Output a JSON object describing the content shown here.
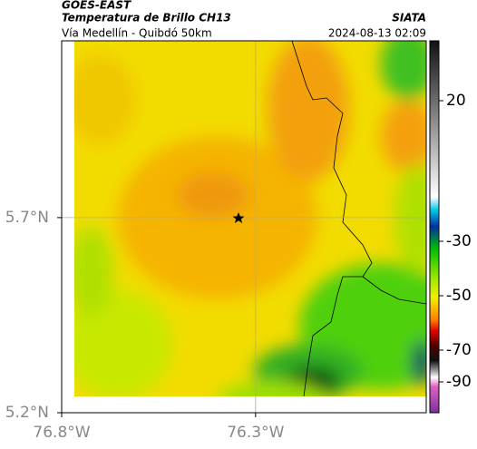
{
  "header": {
    "source": "GOES-EAST",
    "title": "Temperatura de Brillo CH13",
    "brand": "SIATA",
    "subtitle": "Vía Medellín - Quibdó 50km",
    "timestamp": "2024-08-13 02:09"
  },
  "map": {
    "xlim": [
      -76.8,
      -75.86
    ],
    "ylim": [
      5.2,
      6.153
    ],
    "xticks": [
      {
        "value": -76.8,
        "label": "76.8°W"
      },
      {
        "value": -76.3,
        "label": "76.3°W"
      }
    ],
    "yticks": [
      {
        "value": 5.2,
        "label": "5.2°N"
      },
      {
        "value": 5.7,
        "label": "5.7°N"
      }
    ],
    "grid": true
  },
  "colorbar": {
    "ticks": [
      20,
      -30,
      -50,
      -70,
      -90
    ]
  }
}
